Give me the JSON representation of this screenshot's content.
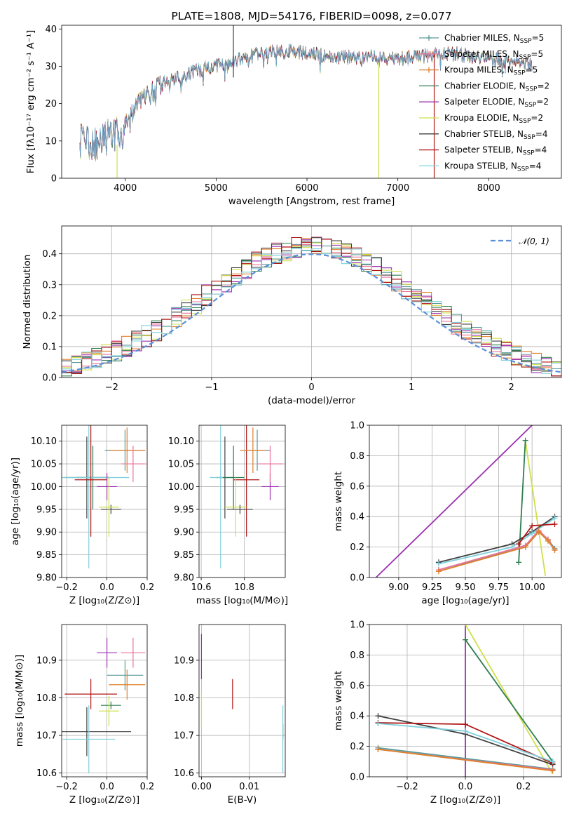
{
  "colors": {
    "Chabrier MILES": "#5a9a9a",
    "Salpeter MILES": "#e9739a",
    "Kroupa MILES": "#e0802a",
    "Chabrier ELODIE": "#2e7d4f",
    "Salpeter ELODIE": "#9b30b0",
    "Kroupa ELODIE": "#cfe04a",
    "Chabrier STELIB": "#404040",
    "Salpeter STELIB": "#b01414",
    "Kroupa STELIB": "#7ed0dc",
    "spec_blue": "#5b8fd8",
    "normal_curve": "#5b8fd8"
  },
  "chart_data": [
    {
      "id": "spectrum",
      "type": "line",
      "title": "PLATE=1808, MJD=54176, FIBERID=0098, z=0.077",
      "xlabel": "wavelength [Angstrom, rest frame]",
      "ylabel": "Flux [fλ10⁻¹⁷ erg cm⁻² s⁻¹ A⁻¹]",
      "xlim": [
        3300,
        8800
      ],
      "ylim": [
        0,
        41
      ],
      "xticks": [
        4000,
        5000,
        6000,
        7000,
        8000
      ],
      "yticks": [
        0,
        10,
        20,
        30,
        40
      ],
      "legend_position": "top-right",
      "continuum_knots": [
        [
          3500,
          10
        ],
        [
          3700,
          9
        ],
        [
          3850,
          12
        ],
        [
          3950,
          11.5
        ],
        [
          4050,
          16
        ],
        [
          4150,
          20
        ],
        [
          4300,
          23
        ],
        [
          4450,
          26
        ],
        [
          4600,
          27
        ],
        [
          4800,
          29
        ],
        [
          5000,
          30
        ],
        [
          5200,
          31.5
        ],
        [
          5500,
          33.5
        ],
        [
          5800,
          34
        ],
        [
          6000,
          33.5
        ],
        [
          6300,
          32.5
        ],
        [
          6600,
          32.5
        ],
        [
          7000,
          32
        ],
        [
          7300,
          33
        ],
        [
          7600,
          33.5
        ],
        [
          8000,
          32
        ],
        [
          8300,
          31
        ],
        [
          8480,
          30.5
        ]
      ],
      "spikes": [
        {
          "x": 3910,
          "y0": 0,
          "y1": 9,
          "series": "Kroupa ELODIE"
        },
        {
          "x": 5190,
          "y0": 27,
          "y1": 41,
          "series": "Chabrier STELIB"
        },
        {
          "x": 6790,
          "y0": 0,
          "y1": 31,
          "series": "Kroupa ELODIE"
        },
        {
          "x": 7400,
          "y0": 0,
          "y1": 33,
          "series": "Salpeter STELIB"
        }
      ],
      "series": [
        {
          "name": "Chabrier MILES, N",
          "sub": "SSP",
          "suffix": "=5",
          "key": "Chabrier MILES",
          "marker": "+"
        },
        {
          "name": "Salpeter MILES, N",
          "sub": "SSP",
          "suffix": "=5",
          "key": "Salpeter MILES",
          "marker": "+"
        },
        {
          "name": "Kroupa MILES, N",
          "sub": "SSP",
          "suffix": "=5",
          "key": "Kroupa MILES",
          "marker": "+"
        },
        {
          "name": "Chabrier ELODIE, N",
          "sub": "SSP",
          "suffix": "=2",
          "key": "Chabrier ELODIE",
          "marker": ""
        },
        {
          "name": "Salpeter ELODIE, N",
          "sub": "SSP",
          "suffix": "=2",
          "key": "Salpeter ELODIE",
          "marker": ""
        },
        {
          "name": "Kroupa ELODIE, N",
          "sub": "SSP",
          "suffix": "=2",
          "key": "Kroupa ELODIE",
          "marker": ""
        },
        {
          "name": "Chabrier STELIB, N",
          "sub": "SSP",
          "suffix": "=4",
          "key": "Chabrier STELIB",
          "marker": ""
        },
        {
          "name": "Salpeter STELIB, N",
          "sub": "SSP",
          "suffix": "=4",
          "key": "Salpeter STELIB",
          "marker": ""
        },
        {
          "name": "Kroupa STELIB, N",
          "sub": "SSP",
          "suffix": "=4",
          "key": "Kroupa STELIB",
          "marker": ""
        }
      ]
    },
    {
      "id": "residuals",
      "type": "line",
      "xlabel": "(data-model)/error",
      "ylabel": "Normed distribution",
      "xlim": [
        -2.5,
        2.5
      ],
      "ylim": [
        0,
        0.49
      ],
      "xticks": [
        -2,
        -1,
        0,
        1,
        2
      ],
      "yticks": [
        0.0,
        0.1,
        0.2,
        0.3,
        0.4
      ],
      "grid": true,
      "legend_position": "top-right",
      "normal_label": "𝒩(0, 1)",
      "bin_width": 0.1,
      "histograms": [
        {
          "key": "Chabrier MILES",
          "seed": 3
        },
        {
          "key": "Salpeter MILES",
          "seed": 7
        },
        {
          "key": "Kroupa MILES",
          "seed": 11
        },
        {
          "key": "Chabrier ELODIE",
          "seed": 13
        },
        {
          "key": "Salpeter ELODIE",
          "seed": 17
        },
        {
          "key": "Kroupa ELODIE",
          "seed": 19
        },
        {
          "key": "Chabrier STELIB",
          "seed": 23
        },
        {
          "key": "Salpeter STELIB",
          "seed": 29
        },
        {
          "key": "Kroupa STELIB",
          "seed": 31
        }
      ]
    },
    {
      "id": "age-vs-Z",
      "type": "scatter",
      "xlabel": "Z [log₁₀(Z/Z⊙)]",
      "ylabel": "age  [log₁₀(age/yr)]",
      "xlim": [
        -0.225,
        0.2
      ],
      "ylim": [
        9.8,
        10.135
      ],
      "xticks": [
        -0.2,
        0.0,
        0.2
      ],
      "yticks": [
        9.8,
        9.85,
        9.9,
        9.95,
        10.0,
        10.05,
        10.1
      ],
      "grid": true,
      "points": [
        {
          "key": "Chabrier STELIB",
          "x": -0.1,
          "xerr": 0.11,
          "y": 10.02,
          "yerr": 0.09
        },
        {
          "key": "Chabrier ELODIE",
          "x": -0.07,
          "xerr": 0.08,
          "y": 10.02,
          "yerr": 0.07
        },
        {
          "key": "Kroupa STELIB",
          "x": -0.09,
          "xerr": 0.2,
          "y": 10.02,
          "yerr": 0.2
        },
        {
          "key": "Salpeter STELIB",
          "x": -0.08,
          "xerr": 0.08,
          "y": 10.015,
          "yerr": 0.125
        },
        {
          "key": "Salpeter ELODIE",
          "x": 0.0,
          "xerr": 0.05,
          "y": 10.0,
          "yerr": 0.03
        },
        {
          "key": "Chabrier STELIB",
          "x": 0.02,
          "xerr": 0.05,
          "y": 9.95,
          "yerr": 0.01
        },
        {
          "key": "Kroupa ELODIE",
          "x": 0.01,
          "xerr": 0.05,
          "y": 9.955,
          "yerr": 0.065
        },
        {
          "key": "Chabrier MILES",
          "x": 0.09,
          "xerr": 0.1,
          "y": 10.08,
          "yerr": 0.045
        },
        {
          "key": "Kroupa MILES",
          "x": 0.1,
          "xerr": 0.09,
          "y": 10.08,
          "yerr": 0.05
        },
        {
          "key": "Salpeter MILES",
          "x": 0.13,
          "xerr": 0.06,
          "y": 10.05,
          "yerr": 0.04
        }
      ]
    },
    {
      "id": "age-vs-mass",
      "type": "scatter",
      "xlabel": "mass [log₁₀(M/M⊙)]",
      "ylabel": "",
      "xlim": [
        10.59,
        10.99
      ],
      "ylim": [
        9.8,
        10.135
      ],
      "xticks": [
        10.6,
        10.8
      ],
      "yticks": [
        9.8,
        9.85,
        9.9,
        9.95,
        10.0,
        10.05,
        10.1
      ],
      "grid": true,
      "points": [
        {
          "key": "Chabrier STELIB",
          "x": 10.71,
          "xerr": 0.04,
          "y": 10.02,
          "yerr": 0.09
        },
        {
          "key": "Kroupa STELIB",
          "x": 10.69,
          "xerr": 0.05,
          "y": 10.02,
          "yerr": 0.2
        },
        {
          "key": "Chabrier ELODIE",
          "x": 10.75,
          "xerr": 0.05,
          "y": 10.02,
          "yerr": 0.07
        },
        {
          "key": "Salpeter STELIB",
          "x": 10.81,
          "xerr": 0.06,
          "y": 10.015,
          "yerr": 0.125
        },
        {
          "key": "Kroupa ELODIE",
          "x": 10.76,
          "xerr": 0.05,
          "y": 9.955,
          "yerr": 0.065
        },
        {
          "key": "Chabrier STELIB",
          "x": 10.78,
          "xerr": 0.06,
          "y": 9.95,
          "yerr": 0.01
        },
        {
          "key": "Salpeter ELODIE",
          "x": 10.92,
          "xerr": 0.04,
          "y": 10.0,
          "yerr": 0.03
        },
        {
          "key": "Chabrier MILES",
          "x": 10.86,
          "xerr": 0.06,
          "y": 10.08,
          "yerr": 0.045
        },
        {
          "key": "Kroupa MILES",
          "x": 10.84,
          "xerr": 0.06,
          "y": 10.08,
          "yerr": 0.05
        },
        {
          "key": "Salpeter MILES",
          "x": 10.92,
          "xerr": 0.06,
          "y": 10.05,
          "yerr": 0.04
        }
      ]
    },
    {
      "id": "weight-vs-age",
      "type": "line",
      "xlabel": "age  [log₁₀(age/yr)]",
      "ylabel": "mass weight",
      "xlim": [
        8.78,
        10.22
      ],
      "ylim": [
        0,
        1.0
      ],
      "xticks": [
        9.0,
        9.25,
        9.5,
        9.75,
        10.0
      ],
      "yticks": [
        0.0,
        0.2,
        0.4,
        0.6,
        0.8,
        1.0
      ],
      "grid": true,
      "series": [
        {
          "key": "Salpeter ELODIE",
          "x": [
            8.83,
            10.0
          ],
          "y": [
            0.0,
            1.0
          ],
          "marker": ""
        },
        {
          "key": "Kroupa ELODIE",
          "x": [
            9.95,
            10.1
          ],
          "y": [
            0.9,
            0.01
          ],
          "marker": ""
        },
        {
          "key": "Chabrier ELODIE",
          "x": [
            9.9,
            9.95
          ],
          "y": [
            0.1,
            0.9
          ],
          "marker": "+"
        },
        {
          "key": "Chabrier STELIB",
          "x": [
            9.3,
            9.85,
            10.0,
            10.17
          ],
          "y": [
            0.1,
            0.22,
            0.3,
            0.4
          ],
          "marker": "+"
        },
        {
          "key": "Kroupa STELIB",
          "x": [
            9.3,
            9.85,
            10.0,
            10.17
          ],
          "y": [
            0.09,
            0.2,
            0.29,
            0.39
          ],
          "marker": "+"
        },
        {
          "key": "Salpeter STELIB",
          "x": [
            9.9,
            10.0,
            10.17
          ],
          "y": [
            0.22,
            0.34,
            0.35
          ],
          "marker": "+"
        },
        {
          "key": "Chabrier MILES",
          "x": [
            9.3,
            9.95,
            10.05,
            10.12,
            10.17
          ],
          "y": [
            0.05,
            0.2,
            0.3,
            0.25,
            0.19
          ],
          "marker": "+"
        },
        {
          "key": "Salpeter MILES",
          "x": [
            9.3,
            9.95,
            10.05,
            10.12,
            10.17
          ],
          "y": [
            0.05,
            0.21,
            0.31,
            0.25,
            0.18
          ],
          "marker": "+"
        },
        {
          "key": "Kroupa MILES",
          "x": [
            9.3,
            9.95,
            10.05,
            10.12,
            10.17
          ],
          "y": [
            0.04,
            0.2,
            0.3,
            0.24,
            0.18
          ],
          "marker": "+"
        }
      ]
    },
    {
      "id": "mass-vs-Z",
      "type": "scatter",
      "xlabel": "Z [log₁₀(Z/Z⊙)]",
      "ylabel": "mass [log₁₀(M/M⊙)]",
      "xlim": [
        -0.225,
        0.2
      ],
      "ylim": [
        10.59,
        10.995
      ],
      "xticks": [
        -0.2,
        0.0,
        0.2
      ],
      "yticks": [
        10.6,
        10.7,
        10.8,
        10.9
      ],
      "grid": true,
      "points": [
        {
          "key": "Chabrier STELIB",
          "x": -0.1,
          "xerr": 0.22,
          "y": 10.71,
          "yerr": 0.065
        },
        {
          "key": "Kroupa STELIB",
          "x": -0.09,
          "xerr": 0.13,
          "y": 10.69,
          "yerr": 0.09
        },
        {
          "key": "Salpeter STELIB",
          "x": -0.08,
          "xerr": 0.13,
          "y": 10.81,
          "yerr": 0.04
        },
        {
          "key": "Chabrier ELODIE",
          "x": 0.02,
          "xerr": 0.05,
          "y": 10.78,
          "yerr": 0.01
        },
        {
          "key": "Kroupa ELODIE",
          "x": 0.01,
          "xerr": 0.05,
          "y": 10.765,
          "yerr": 0.04
        },
        {
          "key": "Salpeter ELODIE",
          "x": 0.0,
          "xerr": 0.05,
          "y": 10.92,
          "yerr": 0.04
        },
        {
          "key": "Chabrier MILES",
          "x": 0.09,
          "xerr": 0.09,
          "y": 10.86,
          "yerr": 0.04
        },
        {
          "key": "Kroupa MILES",
          "x": 0.1,
          "xerr": 0.09,
          "y": 10.835,
          "yerr": 0.04
        },
        {
          "key": "Salpeter MILES",
          "x": 0.13,
          "xerr": 0.06,
          "y": 10.92,
          "yerr": 0.04
        }
      ]
    },
    {
      "id": "mass-vs-EBV",
      "type": "scatter",
      "xlabel": "E(B-V)",
      "ylabel": "",
      "xlim": [
        -0.0005,
        0.0175
      ],
      "ylim": [
        10.59,
        10.995
      ],
      "xticks": [
        0.0,
        0.01
      ],
      "yticks": [
        10.6,
        10.7,
        10.8,
        10.9
      ],
      "grid": true,
      "points": [
        {
          "key": "Salpeter ELODIE",
          "x": 0.0,
          "xerr": 0.0,
          "y": 10.91,
          "yerr": 0.06
        },
        {
          "key": "Kroupa ELODIE",
          "x": 0.0,
          "xerr": 0.0,
          "y": 10.77,
          "yerr": 0.05
        },
        {
          "key": "Salpeter STELIB",
          "x": 0.0065,
          "xerr": 0.0,
          "y": 10.81,
          "yerr": 0.04
        },
        {
          "key": "Chabrier STELIB",
          "x": 0.017,
          "xerr": 0.0,
          "y": 10.71,
          "yerr": 0.02
        },
        {
          "key": "Kroupa STELIB",
          "x": 0.017,
          "xerr": 0.0,
          "y": 10.69,
          "yerr": 0.09
        }
      ]
    },
    {
      "id": "weight-vs-Z",
      "type": "line",
      "xlabel": "Z [log₁₀(Z/Z⊙)]",
      "ylabel": "mass weight",
      "xlim": [
        -0.33,
        0.33
      ],
      "ylim": [
        0,
        1.0
      ],
      "xticks": [
        -0.2,
        0.0,
        0.2
      ],
      "yticks": [
        0.0,
        0.2,
        0.4,
        0.6,
        0.8,
        1.0
      ],
      "grid": true,
      "series": [
        {
          "key": "Salpeter ELODIE",
          "x": [
            0.0,
            0.0
          ],
          "y": [
            0.0,
            1.0
          ],
          "marker": ""
        },
        {
          "key": "Kroupa ELODIE",
          "x": [
            0.0,
            0.3
          ],
          "y": [
            1.0,
            0.02
          ],
          "marker": ""
        },
        {
          "key": "Chabrier ELODIE",
          "x": [
            0.0,
            0.3
          ],
          "y": [
            0.9,
            0.1
          ],
          "marker": "+"
        },
        {
          "key": "Chabrier STELIB",
          "x": [
            -0.3,
            0.0,
            0.3
          ],
          "y": [
            0.4,
            0.28,
            0.08
          ],
          "marker": "+"
        },
        {
          "key": "Salpeter STELIB",
          "x": [
            -0.3,
            0.0,
            0.3
          ],
          "y": [
            0.355,
            0.345,
            0.09
          ],
          "marker": "+"
        },
        {
          "key": "Kroupa STELIB",
          "x": [
            -0.3,
            0.0,
            0.3
          ],
          "y": [
            0.35,
            0.3,
            0.1
          ],
          "marker": "+"
        },
        {
          "key": "Chabrier MILES",
          "x": [
            -0.3,
            0.3
          ],
          "y": [
            0.19,
            0.05
          ],
          "marker": "+"
        },
        {
          "key": "Salpeter MILES",
          "x": [
            -0.3,
            0.3
          ],
          "y": [
            0.18,
            0.045
          ],
          "marker": "+"
        },
        {
          "key": "Kroupa MILES",
          "x": [
            -0.3,
            0.3
          ],
          "y": [
            0.18,
            0.04
          ],
          "marker": "+"
        }
      ]
    }
  ]
}
